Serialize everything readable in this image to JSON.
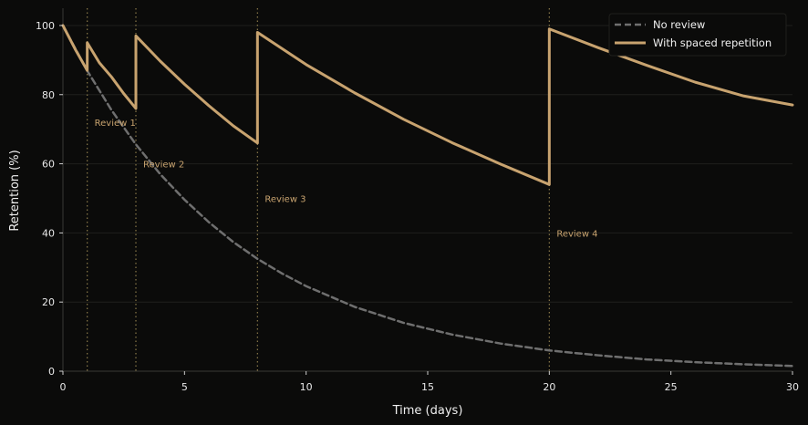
{
  "chart_data": {
    "type": "line",
    "title": "",
    "xlabel": "Time (days)",
    "ylabel": "Retention (%)",
    "xlim": [
      0,
      30
    ],
    "ylim": [
      0,
      105
    ],
    "x_ticks": [
      0,
      5,
      10,
      15,
      20,
      25,
      30
    ],
    "y_ticks": [
      0,
      20,
      40,
      60,
      80,
      100
    ],
    "grid": "horizontal",
    "legend_position": "top-right",
    "series": [
      {
        "name": "No review",
        "style": "dashed",
        "color": "#6f6f6f",
        "x": [
          0,
          1,
          2,
          3,
          4,
          5,
          6,
          7,
          8,
          9,
          10,
          12,
          14,
          16,
          18,
          20,
          22,
          24,
          26,
          28,
          30
        ],
        "values": [
          100,
          86.9,
          75.5,
          65.6,
          57.0,
          49.6,
          43.1,
          37.4,
          32.5,
          28.3,
          24.6,
          18.6,
          14.0,
          10.6,
          8.0,
          6.0,
          4.6,
          3.4,
          2.6,
          2.0,
          1.5
        ]
      },
      {
        "name": "With spaced repetition",
        "style": "solid",
        "color": "#c8a36f",
        "x": [
          0,
          0.5,
          1,
          1,
          1.5,
          2,
          2.5,
          3,
          3,
          4,
          5,
          6,
          7,
          8,
          8,
          10,
          12,
          14,
          16,
          18,
          20,
          20,
          22,
          24,
          26,
          28,
          30
        ],
        "values": [
          100,
          93.2,
          87,
          95,
          89.2,
          85.1,
          80.3,
          76,
          97,
          89.7,
          83.0,
          76.8,
          71.0,
          66,
          98,
          88.7,
          80.5,
          72.9,
          66.1,
          59.9,
          54,
          99,
          93.6,
          88.5,
          83.6,
          79.6,
          77
        ]
      }
    ],
    "reviews": [
      {
        "x": 1,
        "label": "Review 1",
        "label_y": 72
      },
      {
        "x": 3,
        "label": "Review 2",
        "label_y": 60
      },
      {
        "x": 8,
        "label": "Review 3",
        "label_y": 50
      },
      {
        "x": 20,
        "label": "Review 4",
        "label_y": 40
      }
    ]
  },
  "colors": {
    "background": "#0b0b0a",
    "accent": "#c8a36f",
    "baseline": "#6f6f6f",
    "text": "#e8e8e8",
    "grid": "#1f1f1c",
    "review_line": "#8a7a4a"
  }
}
